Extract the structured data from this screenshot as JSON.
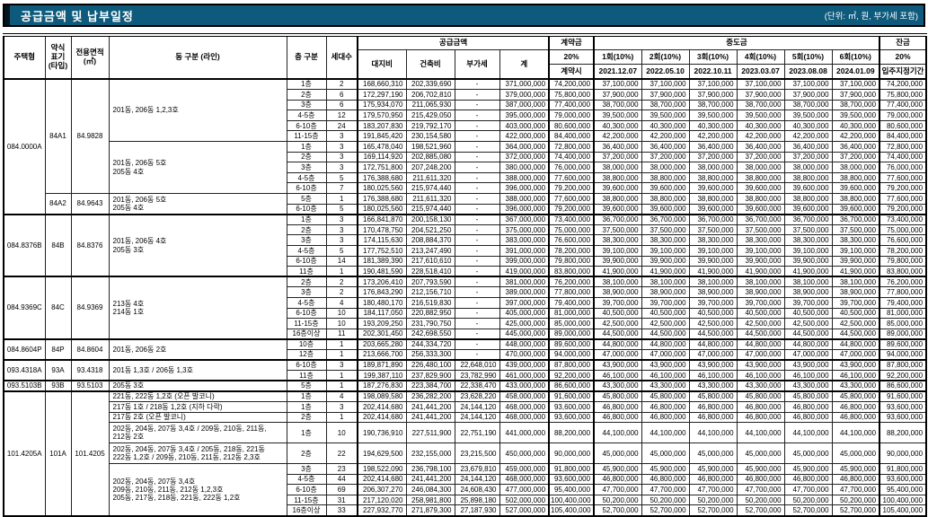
{
  "title": "공급금액 및 납부일정",
  "unit_note": "(단위: ㎡, 원, 부가세 포함)",
  "colors": {
    "titlebar_bg": "#0e5a7c",
    "titlebar_text": "#ffffff",
    "table_border": "#000000"
  },
  "header": {
    "housing_type": "주택형",
    "short_code": "약식\n표기\n(타입)",
    "area": "전용면적\n(㎡)",
    "dong": "동 구분 (라인)",
    "floor": "층 구분",
    "units": "세대수",
    "supply_group": "공급금액",
    "supply_cols": [
      "대지비",
      "건축비",
      "부가세",
      "계"
    ],
    "down_group": "계약금",
    "down_pct": "20%",
    "down_when": "계약시",
    "interim_group": "중도금",
    "interim_cols": [
      "1회(10%)",
      "2회(10%)",
      "3회(10%)",
      "4회(10%)",
      "5회(10%)",
      "6회(10%)"
    ],
    "interim_dates": [
      "2021.12.07",
      "2022.05.10",
      "2022.10.11",
      "2023.03.07",
      "2023.08.08",
      "2024.01.09"
    ],
    "balance_group": "잔금",
    "balance_pct": "20%",
    "balance_when": "입주지정기간"
  },
  "row_fields": [
    "floor",
    "units",
    "land",
    "building",
    "vat",
    "total",
    "down_payment",
    "interim_each",
    "balance"
  ],
  "groups": [
    {
      "name": "084.0000A",
      "subtypes": [
        {
          "code": "84A1",
          "area": "84.9828",
          "blocks": [
            {
              "dong": "201동, 206동 1,2,3호",
              "rows": [
                [
                  "1층",
                  "2",
                  "168,660,310",
                  "202,339,690",
                  "-",
                  "371,000,000",
                  "74,200,000",
                  "37,100,000",
                  "74,200,000"
                ],
                [
                  "2층",
                  "6",
                  "172,297,190",
                  "206,702,810",
                  "-",
                  "379,000,000",
                  "75,800,000",
                  "37,900,000",
                  "75,800,000"
                ],
                [
                  "3층",
                  "6",
                  "175,934,070",
                  "211,065,930",
                  "-",
                  "387,000,000",
                  "77,400,000",
                  "38,700,000",
                  "77,400,000"
                ],
                [
                  "4-5층",
                  "12",
                  "179,570,950",
                  "215,429,050",
                  "-",
                  "395,000,000",
                  "79,000,000",
                  "39,500,000",
                  "79,000,000"
                ],
                [
                  "6-10층",
                  "24",
                  "183,207,830",
                  "219,792,170",
                  "-",
                  "403,000,000",
                  "80,600,000",
                  "40,300,000",
                  "80,600,000"
                ],
                [
                  "11-15층",
                  "3",
                  "191,845,420",
                  "230,154,580",
                  "-",
                  "422,000,000",
                  "84,400,000",
                  "42,200,000",
                  "84,400,000"
                ]
              ]
            },
            {
              "dong": "201동, 206동 5호\n205동 4호",
              "rows": [
                [
                  "1층",
                  "3",
                  "165,478,040",
                  "198,521,960",
                  "-",
                  "364,000,000",
                  "72,800,000",
                  "36,400,000",
                  "72,800,000"
                ],
                [
                  "2층",
                  "3",
                  "169,114,920",
                  "202,885,080",
                  "-",
                  "372,000,000",
                  "74,400,000",
                  "37,200,000",
                  "74,400,000"
                ],
                [
                  "3층",
                  "3",
                  "172,751,800",
                  "207,248,200",
                  "-",
                  "380,000,000",
                  "76,000,000",
                  "38,000,000",
                  "76,000,000"
                ],
                [
                  "4-5층",
                  "5",
                  "176,388,680",
                  "211,611,320",
                  "-",
                  "388,000,000",
                  "77,600,000",
                  "38,800,000",
                  "77,600,000"
                ],
                [
                  "6-10층",
                  "7",
                  "180,025,560",
                  "215,974,440",
                  "-",
                  "396,000,000",
                  "79,200,000",
                  "39,600,000",
                  "79,200,000"
                ]
              ]
            }
          ]
        },
        {
          "code": "84A2",
          "area": "84.9643",
          "blocks": [
            {
              "dong": "201동, 206동 5호\n205동 4호",
              "rows": [
                [
                  "5층",
                  "1",
                  "176,388,680",
                  "211,611,320",
                  "-",
                  "388,000,000",
                  "77,600,000",
                  "38,800,000",
                  "77,600,000"
                ],
                [
                  "6-10층",
                  "5",
                  "180,025,560",
                  "215,974,440",
                  "-",
                  "396,000,000",
                  "79,200,000",
                  "39,600,000",
                  "79,200,000"
                ]
              ]
            }
          ]
        }
      ]
    },
    {
      "name": "084.8376B",
      "subtypes": [
        {
          "code": "84B",
          "area": "84.8376",
          "blocks": [
            {
              "dong": "201동, 206동 4호\n205동 3호",
              "rows": [
                [
                  "1층",
                  "3",
                  "166,841,870",
                  "200,158,130",
                  "-",
                  "367,000,000",
                  "73,400,000",
                  "36,700,000",
                  "73,400,000"
                ],
                [
                  "2층",
                  "3",
                  "170,478,750",
                  "204,521,250",
                  "-",
                  "375,000,000",
                  "75,000,000",
                  "37,500,000",
                  "75,000,000"
                ],
                [
                  "3층",
                  "3",
                  "174,115,630",
                  "208,884,370",
                  "-",
                  "383,000,000",
                  "76,600,000",
                  "38,300,000",
                  "76,600,000"
                ],
                [
                  "4-5층",
                  "5",
                  "177,752,510",
                  "213,247,490",
                  "-",
                  "391,000,000",
                  "78,200,000",
                  "39,100,000",
                  "78,200,000"
                ],
                [
                  "6-10층",
                  "14",
                  "181,389,390",
                  "217,610,610",
                  "-",
                  "399,000,000",
                  "79,800,000",
                  "39,900,000",
                  "79,800,000"
                ],
                [
                  "11층",
                  "1",
                  "190,481,590",
                  "228,518,410",
                  "-",
                  "419,000,000",
                  "83,800,000",
                  "41,900,000",
                  "83,800,000"
                ]
              ]
            }
          ]
        }
      ]
    },
    {
      "name": "084.9369C",
      "subtypes": [
        {
          "code": "84C",
          "area": "84.9369",
          "blocks": [
            {
              "dong": "213동 4호\n214동 1호",
              "rows": [
                [
                  "2층",
                  "2",
                  "173,206,410",
                  "207,793,590",
                  "-",
                  "381,000,000",
                  "76,200,000",
                  "38,100,000",
                  "76,200,000"
                ],
                [
                  "3층",
                  "2",
                  "176,843,290",
                  "212,156,710",
                  "-",
                  "389,000,000",
                  "77,800,000",
                  "38,900,000",
                  "77,800,000"
                ],
                [
                  "4-5층",
                  "4",
                  "180,480,170",
                  "216,519,830",
                  "-",
                  "397,000,000",
                  "79,400,000",
                  "39,700,000",
                  "79,400,000"
                ],
                [
                  "6-10층",
                  "10",
                  "184,117,050",
                  "220,882,950",
                  "-",
                  "405,000,000",
                  "81,000,000",
                  "40,500,000",
                  "81,000,000"
                ],
                [
                  "11-15층",
                  "10",
                  "193,209,250",
                  "231,790,750",
                  "-",
                  "425,000,000",
                  "85,000,000",
                  "42,500,000",
                  "85,000,000"
                ],
                [
                  "16층이상",
                  "11",
                  "202,301,450",
                  "242,698,550",
                  "-",
                  "445,000,000",
                  "89,000,000",
                  "44,500,000",
                  "89,000,000"
                ]
              ]
            }
          ]
        }
      ]
    },
    {
      "name": "084.8604P",
      "subtypes": [
        {
          "code": "84P",
          "area": "84.8604",
          "blocks": [
            {
              "dong": "201동, 206동 2호",
              "rows": [
                [
                  "10층",
                  "1",
                  "203,665,280",
                  "244,334,720",
                  "-",
                  "448,000,000",
                  "89,600,000",
                  "44,800,000",
                  "89,600,000"
                ],
                [
                  "12층",
                  "1",
                  "213,666,700",
                  "256,333,300",
                  "-",
                  "470,000,000",
                  "94,000,000",
                  "47,000,000",
                  "94,000,000"
                ]
              ]
            }
          ]
        }
      ]
    },
    {
      "name": "093.4318A",
      "subtypes": [
        {
          "code": "93A",
          "area": "93.4318",
          "blocks": [
            {
              "dong": "201동 1,3호 / 206동 1,3호",
              "rows": [
                [
                  "6-10층",
                  "3",
                  "189,871,890",
                  "226,480,100",
                  "22,648,010",
                  "439,000,000",
                  "87,800,000",
                  "43,900,000",
                  "87,800,000"
                ],
                [
                  "11층",
                  "1",
                  "199,387,110",
                  "237,829,900",
                  "23,782,990",
                  "461,000,000",
                  "92,200,000",
                  "46,100,000",
                  "92,200,000"
                ]
              ]
            }
          ]
        }
      ]
    },
    {
      "name": "093.5103B",
      "subtypes": [
        {
          "code": "93B",
          "area": "93.5103",
          "blocks": [
            {
              "dong": "205동 3호",
              "rows": [
                [
                  "5층",
                  "1",
                  "187,276,830",
                  "223,384,700",
                  "22,338,470",
                  "433,000,000",
                  "86,600,000",
                  "43,300,000",
                  "86,600,000"
                ]
              ]
            }
          ]
        }
      ]
    },
    {
      "name": "101.4205A",
      "subtypes": [
        {
          "code": "101A",
          "area": "101.4205",
          "blocks": [
            {
              "dong": "221동, 222동 1,2호 (오픈 발코니)",
              "rows": [
                [
                  "1층",
                  "4",
                  "198,089,580",
                  "236,282,200",
                  "23,628,220",
                  "458,000,000",
                  "91,600,000",
                  "45,800,000",
                  "91,600,000"
                ]
              ]
            },
            {
              "dong": "217동 1호 / 218동 1,2호 (지하 다락)",
              "rows": [
                [
                  "1층",
                  "3",
                  "202,414,680",
                  "241,441,200",
                  "24,144,120",
                  "468,000,000",
                  "93,600,000",
                  "46,800,000",
                  "93,600,000"
                ]
              ]
            },
            {
              "dong": "217동 2호 (오픈 발코니)",
              "rows": [
                [
                  "2층",
                  "1",
                  "202,414,680",
                  "241,441,200",
                  "24,144,120",
                  "468,000,000",
                  "93,600,000",
                  "46,800,000",
                  "93,600,000"
                ]
              ]
            },
            {
              "dong": "202동, 204동, 207동 3,4호 / 209동, 210동, 211동,\n212동 2호",
              "tall": true,
              "rows": [
                [
                  "1층",
                  "10",
                  "190,736,910",
                  "227,511,900",
                  "22,751,190",
                  "441,000,000",
                  "88,200,000",
                  "44,100,000",
                  "88,200,000"
                ]
              ]
            },
            {
              "dong": "202동, 204동, 207동 3,4호 / 205동, 218동, 221동\n222동 1,2호 / 209동, 210동, 211동, 212동 2,3호",
              "tall": true,
              "rows": [
                [
                  "2층",
                  "22",
                  "194,629,500",
                  "232,155,000",
                  "23,215,500",
                  "450,000,000",
                  "90,000,000",
                  "45,000,000",
                  "90,000,000"
                ]
              ]
            },
            {
              "dong": "202동, 204동, 207동 3,4호\n209동, 210동, 211동, 212동 1,2,3호\n205동, 217동, 218동, 221동, 222동 1,2호",
              "rows": [
                [
                  "3층",
                  "23",
                  "198,522,090",
                  "236,798,100",
                  "23,679,810",
                  "459,000,000",
                  "91,800,000",
                  "45,900,000",
                  "91,800,000"
                ],
                [
                  "4-5층",
                  "44",
                  "202,414,680",
                  "241,441,200",
                  "24,144,120",
                  "468,000,000",
                  "93,600,000",
                  "46,800,000",
                  "93,600,000"
                ],
                [
                  "6-10층",
                  "69",
                  "206,307,270",
                  "246,084,300",
                  "24,608,430",
                  "477,000,000",
                  "95,400,000",
                  "47,700,000",
                  "95,400,000"
                ],
                [
                  "11-15층",
                  "31",
                  "217,120,020",
                  "258,981,800",
                  "25,898,180",
                  "502,000,000",
                  "100,400,000",
                  "50,200,000",
                  "100,400,000"
                ],
                [
                  "16층이상",
                  "33",
                  "227,932,770",
                  "271,879,300",
                  "27,187,930",
                  "527,000,000",
                  "105,400,000",
                  "52,700,000",
                  "105,400,000"
                ]
              ]
            }
          ]
        }
      ]
    }
  ]
}
